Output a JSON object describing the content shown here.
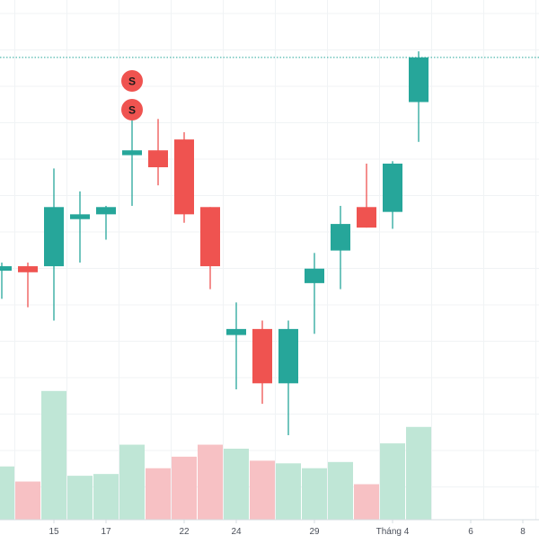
{
  "colors": {
    "up": "#26a69a",
    "down": "#ef5350",
    "vol_up": "#bfe6d6",
    "vol_down": "#f7c1c4",
    "grid": "#f0f3f5",
    "axis_text": "#4a4f59",
    "price_line": "#26a69a",
    "marker": "#ef5350",
    "axis_line": "#d6dce0"
  },
  "chart_data": {
    "type": "candlestick",
    "x_axis_ticks": [
      {
        "label": "15",
        "index": 2
      },
      {
        "label": "17",
        "index": 4
      },
      {
        "label": "22",
        "index": 7
      },
      {
        "label": "24",
        "index": 9
      },
      {
        "label": "29",
        "index": 12
      },
      {
        "label": "Tháng 4",
        "index": 15
      },
      {
        "label": "6",
        "index": 18
      },
      {
        "label": "8",
        "index": 20
      }
    ],
    "candles": [
      {
        "index": 0,
        "open": 51.0,
        "high": 51.3,
        "low": 48.3,
        "close": 51.0
      },
      {
        "index": 1,
        "open": 51.0,
        "high": 51.3,
        "low": 47.6,
        "close": 50.5
      },
      {
        "index": 2,
        "open": 51.0,
        "high": 59.1,
        "low": 46.5,
        "close": 55.9
      },
      {
        "index": 3,
        "open": 54.9,
        "high": 57.2,
        "low": 51.3,
        "close": 55.3
      },
      {
        "index": 4,
        "open": 55.3,
        "high": 56.0,
        "low": 53.2,
        "close": 55.9
      },
      {
        "index": 5,
        "open": 60.2,
        "high": 63.6,
        "low": 56.0,
        "close": 60.6
      },
      {
        "index": 6,
        "open": 60.6,
        "high": 63.2,
        "low": 57.7,
        "close": 59.2
      },
      {
        "index": 7,
        "open": 61.5,
        "high": 62.1,
        "low": 54.6,
        "close": 55.3
      },
      {
        "index": 8,
        "open": 55.9,
        "high": 55.9,
        "low": 49.1,
        "close": 51.0
      },
      {
        "index": 9,
        "open": 45.3,
        "high": 48.0,
        "low": 40.8,
        "close": 45.8
      },
      {
        "index": 10,
        "open": 45.8,
        "high": 46.5,
        "low": 39.6,
        "close": 41.3
      },
      {
        "index": 11,
        "open": 41.3,
        "high": 46.5,
        "low": 37.0,
        "close": 45.8
      },
      {
        "index": 12,
        "open": 49.6,
        "high": 52.1,
        "low": 45.4,
        "close": 50.8
      },
      {
        "index": 13,
        "open": 52.3,
        "high": 56.0,
        "low": 49.1,
        "close": 54.5
      },
      {
        "index": 14,
        "open": 55.9,
        "high": 59.5,
        "low": 54.2,
        "close": 54.2
      },
      {
        "index": 15,
        "open": 55.5,
        "high": 59.7,
        "low": 54.1,
        "close": 59.5
      },
      {
        "index": 16,
        "open": 64.6,
        "high": 68.8,
        "low": 61.3,
        "close": 68.3
      }
    ],
    "volume": [
      {
        "index": 0,
        "value": 12.0,
        "dir": "up"
      },
      {
        "index": 1,
        "value": 8.6,
        "dir": "down"
      },
      {
        "index": 2,
        "value": 29.0,
        "dir": "up"
      },
      {
        "index": 3,
        "value": 9.9,
        "dir": "up"
      },
      {
        "index": 4,
        "value": 10.3,
        "dir": "up"
      },
      {
        "index": 5,
        "value": 16.9,
        "dir": "up"
      },
      {
        "index": 6,
        "value": 11.6,
        "dir": "down"
      },
      {
        "index": 7,
        "value": 14.2,
        "dir": "down"
      },
      {
        "index": 8,
        "value": 16.9,
        "dir": "down"
      },
      {
        "index": 9,
        "value": 16.0,
        "dir": "up"
      },
      {
        "index": 10,
        "value": 13.3,
        "dir": "down"
      },
      {
        "index": 11,
        "value": 12.7,
        "dir": "up"
      },
      {
        "index": 12,
        "value": 11.6,
        "dir": "up"
      },
      {
        "index": 13,
        "value": 13.0,
        "dir": "up"
      },
      {
        "index": 14,
        "value": 8.0,
        "dir": "down"
      },
      {
        "index": 15,
        "value": 17.2,
        "dir": "up"
      },
      {
        "index": 16,
        "value": 20.9,
        "dir": "up"
      }
    ],
    "price_line": 68.3,
    "markers": [
      {
        "label": "S",
        "index": 5,
        "stack": 0
      },
      {
        "label": "S",
        "index": 5,
        "stack": 1
      }
    ],
    "y_range": [
      30,
      70
    ],
    "volume_range": [
      0,
      32
    ],
    "x_range": [
      -0.3,
      21.7
    ],
    "grid": true
  }
}
